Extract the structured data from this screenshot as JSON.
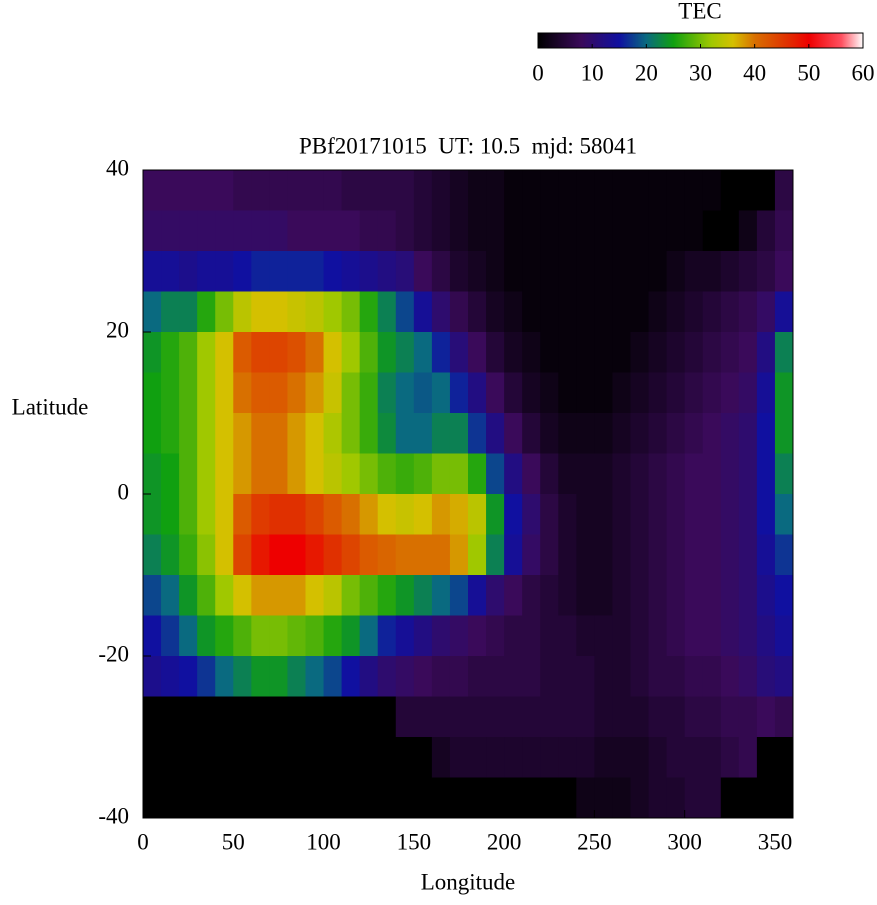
{
  "chart_data": {
    "type": "heatmap",
    "title": "PBf20171015  UT: 10.5  mjd: 58041",
    "x_label": "Longitude",
    "y_label": "Latitude",
    "xlim": [
      0,
      360
    ],
    "ylim": [
      -40,
      40
    ],
    "xticks": [
      0,
      50,
      100,
      150,
      200,
      250,
      300,
      350
    ],
    "yticks": [
      -40,
      -20,
      0,
      20,
      40
    ],
    "colorbar_title": "TEC",
    "clim": [
      0,
      60
    ],
    "colorbar_ticks": [
      0,
      10,
      20,
      30,
      40,
      50,
      60
    ],
    "colorscale": [
      [
        0,
        "#000000"
      ],
      [
        8,
        "#3a0a5a"
      ],
      [
        15,
        "#1010a0"
      ],
      [
        20,
        "#0a6a80"
      ],
      [
        25,
        "#10a010"
      ],
      [
        32,
        "#a0c800"
      ],
      [
        36,
        "#d4c000"
      ],
      [
        40,
        "#d87000"
      ],
      [
        46,
        "#e03000"
      ],
      [
        50,
        "#ee0000"
      ],
      [
        56,
        "#ff5060"
      ],
      [
        60,
        "#ffffff"
      ]
    ],
    "x": [
      5,
      15,
      25,
      35,
      45,
      55,
      65,
      75,
      85,
      95,
      105,
      115,
      125,
      135,
      145,
      155,
      165,
      175,
      185,
      195,
      205,
      215,
      225,
      235,
      245,
      255,
      265,
      275,
      285,
      295,
      305,
      315,
      325,
      335,
      345,
      355
    ],
    "y": [
      37.5,
      32.5,
      27.5,
      22.5,
      17.5,
      12.5,
      7.5,
      2.5,
      -2.5,
      -7.5,
      -12.5,
      -17.5,
      -22.5,
      -27.5,
      -32.5,
      -37.5
    ],
    "z": [
      [
        8,
        8,
        8,
        8,
        8,
        7,
        7,
        7,
        7,
        7,
        7,
        6,
        6,
        6,
        6,
        5,
        4,
        3,
        2,
        2,
        1,
        1,
        1,
        1,
        1,
        1,
        1,
        1,
        1,
        1,
        1,
        1,
        0,
        0,
        0,
        6
      ],
      [
        9,
        9,
        9,
        9,
        9,
        9,
        9,
        9,
        8,
        8,
        8,
        8,
        7,
        7,
        6,
        5,
        4,
        3,
        2,
        2,
        1,
        1,
        1,
        1,
        1,
        1,
        1,
        1,
        1,
        1,
        1,
        0,
        0,
        2,
        5,
        7
      ],
      [
        14,
        14,
        13,
        14,
        14,
        15,
        16,
        16,
        16,
        16,
        15,
        14,
        13,
        12,
        11,
        8,
        6,
        4,
        3,
        2,
        1,
        1,
        1,
        1,
        1,
        1,
        1,
        1,
        1,
        2,
        3,
        3,
        4,
        5,
        6,
        8
      ],
      [
        20,
        22,
        22,
        26,
        30,
        34,
        36,
        36,
        35,
        34,
        32,
        30,
        26,
        22,
        18,
        14,
        10,
        7,
        5,
        3,
        2,
        1,
        1,
        1,
        1,
        1,
        1,
        1,
        2,
        3,
        4,
        5,
        6,
        7,
        9,
        14
      ],
      [
        24,
        26,
        28,
        32,
        36,
        42,
        44,
        44,
        43,
        40,
        36,
        32,
        28,
        24,
        22,
        20,
        16,
        11,
        8,
        5,
        3,
        2,
        1,
        1,
        1,
        1,
        1,
        2,
        3,
        4,
        5,
        6,
        7,
        8,
        12,
        22
      ],
      [
        25,
        26,
        28,
        32,
        36,
        40,
        42,
        42,
        40,
        38,
        35,
        30,
        27,
        22,
        20,
        19,
        20,
        16,
        12,
        8,
        5,
        3,
        2,
        1,
        1,
        1,
        2,
        3,
        4,
        5,
        6,
        7,
        8,
        9,
        14,
        24
      ],
      [
        25,
        26,
        28,
        32,
        36,
        38,
        40,
        40,
        38,
        36,
        33,
        30,
        27,
        23,
        20,
        20,
        22,
        22,
        17,
        12,
        8,
        5,
        3,
        2,
        2,
        2,
        3,
        4,
        5,
        6,
        7,
        8,
        9,
        10,
        15,
        24
      ],
      [
        24,
        25,
        28,
        32,
        36,
        38,
        40,
        40,
        38,
        36,
        34,
        32,
        30,
        28,
        27,
        28,
        30,
        30,
        26,
        18,
        12,
        8,
        5,
        3,
        3,
        3,
        4,
        5,
        6,
        7,
        8,
        8,
        9,
        10,
        15,
        22
      ],
      [
        24,
        25,
        28,
        32,
        36,
        42,
        45,
        46,
        46,
        44,
        42,
        40,
        38,
        36,
        35,
        36,
        38,
        37,
        34,
        24,
        15,
        10,
        6,
        4,
        3,
        3,
        4,
        5,
        6,
        7,
        8,
        8,
        9,
        10,
        15,
        20
      ],
      [
        22,
        24,
        27,
        31,
        36,
        44,
        48,
        50,
        50,
        48,
        46,
        44,
        42,
        41,
        40,
        40,
        40,
        38,
        32,
        22,
        14,
        9,
        6,
        4,
        3,
        3,
        4,
        5,
        6,
        7,
        8,
        8,
        9,
        10,
        14,
        17
      ],
      [
        18,
        20,
        24,
        28,
        32,
        36,
        38,
        38,
        38,
        36,
        34,
        30,
        28,
        26,
        24,
        22,
        20,
        18,
        14,
        10,
        8,
        6,
        5,
        4,
        3,
        3,
        4,
        5,
        6,
        7,
        8,
        8,
        9,
        10,
        13,
        15
      ],
      [
        15,
        17,
        20,
        24,
        26,
        28,
        30,
        30,
        29,
        28,
        26,
        24,
        20,
        16,
        14,
        12,
        10,
        9,
        8,
        7,
        6,
        6,
        5,
        5,
        4,
        4,
        4,
        5,
        6,
        7,
        8,
        8,
        9,
        10,
        12,
        14
      ],
      [
        13,
        14,
        15,
        17,
        20,
        22,
        24,
        24,
        22,
        20,
        18,
        15,
        12,
        10,
        9,
        8,
        7,
        7,
        6,
        6,
        6,
        6,
        5,
        5,
        5,
        4,
        4,
        5,
        6,
        6,
        7,
        7,
        8,
        9,
        11,
        12
      ],
      [
        0,
        0,
        0,
        0,
        0,
        0,
        0,
        0,
        0,
        0,
        0,
        0,
        0,
        0,
        5,
        5,
        5,
        5,
        5,
        5,
        5,
        5,
        5,
        5,
        5,
        4,
        4,
        4,
        5,
        5,
        6,
        6,
        7,
        7,
        8,
        7
      ],
      [
        0,
        0,
        0,
        0,
        0,
        0,
        0,
        0,
        0,
        0,
        0,
        0,
        0,
        0,
        0,
        0,
        3,
        4,
        4,
        4,
        4,
        4,
        4,
        4,
        4,
        3,
        3,
        3,
        4,
        5,
        5,
        5,
        6,
        7,
        0,
        0
      ],
      [
        0,
        0,
        0,
        0,
        0,
        0,
        0,
        0,
        0,
        0,
        0,
        0,
        0,
        0,
        0,
        0,
        0,
        0,
        0,
        0,
        0,
        0,
        0,
        0,
        2,
        2,
        2,
        3,
        4,
        4,
        5,
        5,
        0,
        0,
        0,
        0
      ]
    ]
  }
}
